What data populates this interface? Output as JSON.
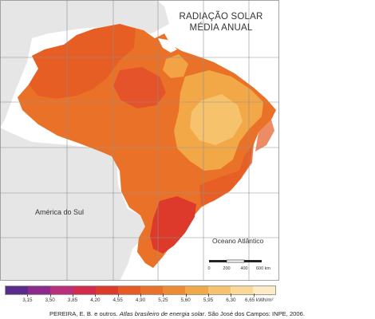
{
  "map": {
    "title_line1": "RADIAÇÃO SOLAR",
    "title_line2": "MÉDIA ANUAL",
    "label_continent": "América do Sul",
    "label_ocean": "Oceano Atlântico",
    "scale_bar": {
      "labels": [
        "0",
        "200",
        "400",
        "600 km"
      ]
    }
  },
  "legend": {
    "colors": [
      "#5a2b8a",
      "#8e2a8e",
      "#b92f7c",
      "#d42a4c",
      "#de3a2c",
      "#e65a24",
      "#ea7228",
      "#ee8a32",
      "#f3a848",
      "#f7c26c",
      "#fad898",
      "#fcebc6"
    ],
    "labels": [
      "3,15",
      "3,50",
      "3,85",
      "4,20",
      "4,55",
      "4,90",
      "5,25",
      "5,60",
      "5,95",
      "6,30",
      "6,65 kWh/m²"
    ]
  },
  "colors": {
    "land_other": "#e6e6e6",
    "ocean": "#ffffff",
    "grid": "#8f8f8f",
    "brazil_base": "#ea7228",
    "brazil_dark": "#e65a24",
    "brazil_red": "#de3a2c",
    "brazil_light": "#f3a848",
    "brazil_lightest": "#f7c26c"
  },
  "citation": {
    "authors": "PEREIRA, E. B. e outros. ",
    "work": "Atlas brasileiro de energia solar",
    "publisher": ". São José dos Campos: INPE, 2006."
  }
}
